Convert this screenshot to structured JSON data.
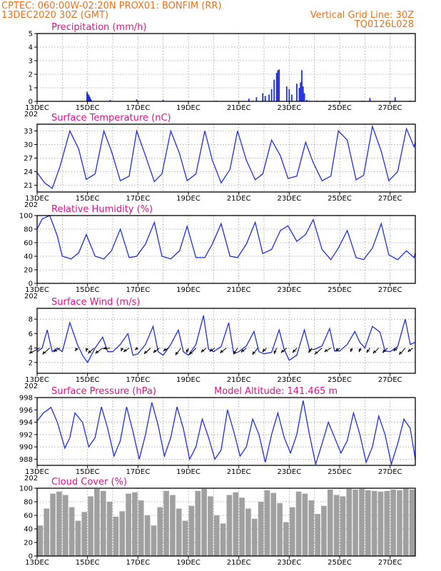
{
  "header": {
    "left_line1": "CPTEC:   060:00W-02:20N   PROX01: BONFIM (RR)",
    "left_line2": "13DEC2020 30Z (GMT)",
    "right_line1": "Vertical Grid Line: 30Z",
    "right_line2": "TQ0126L028"
  },
  "time_axis": {
    "day_start": 13.0,
    "day_end": 28.0,
    "tick_labels": [
      "13DEC",
      "15DEC",
      "17DEC",
      "19DEC",
      "21DEC",
      "23DEC",
      "25DEC",
      "27DEC"
    ],
    "tick_days": [
      13,
      15,
      17,
      19,
      21,
      23,
      25,
      27
    ],
    "year_fragment": "202"
  },
  "chart_data": [
    {
      "type": "bar",
      "title": "Precipitation (mm/h)",
      "ylim": [
        0,
        5
      ],
      "yticks": [
        0,
        1,
        2,
        3,
        4,
        5
      ],
      "color": "#1f2fdf",
      "x": [
        14.98,
        15.02,
        15.06,
        15.1,
        15.14,
        15.9,
        16.95,
        18.0,
        20.1,
        21.4,
        21.55,
        21.7,
        21.95,
        22.05,
        22.2,
        22.3,
        22.4,
        22.5,
        22.55,
        22.6,
        22.9,
        23.0,
        23.1,
        23.3,
        23.4,
        23.45,
        23.5,
        23.55,
        23.6,
        23.7,
        23.8,
        24.1,
        24.4,
        24.8,
        25.9,
        26.2,
        27.2,
        27.8
      ],
      "values": [
        0.7,
        0.55,
        0.45,
        0.3,
        0.15,
        0.1,
        0.15,
        0.1,
        0.05,
        0.2,
        0.05,
        0.3,
        0.6,
        0.4,
        0.5,
        0.9,
        1.6,
        2.1,
        2.3,
        2.35,
        1.1,
        0.9,
        0.5,
        1.3,
        1.0,
        1.4,
        2.3,
        1.1,
        0.6,
        0.1,
        0.05,
        0.05,
        0.05,
        0.05,
        0.05,
        0.25,
        0.3,
        0.05
      ]
    },
    {
      "type": "line",
      "title": "Surface Temperature (nC)",
      "ylim": [
        19.5,
        34.5
      ],
      "yticks": [
        21,
        24,
        27,
        30,
        33
      ],
      "color": "#1f2fdf",
      "x": [
        13.0,
        13.3,
        13.6,
        13.9,
        14.3,
        14.65,
        14.95,
        15.3,
        15.65,
        15.95,
        16.3,
        16.65,
        16.95,
        17.3,
        17.65,
        17.95,
        18.3,
        18.65,
        18.95,
        19.3,
        19.65,
        19.95,
        20.3,
        20.65,
        20.95,
        21.3,
        21.65,
        21.95,
        22.3,
        22.65,
        22.95,
        23.3,
        23.65,
        23.95,
        24.3,
        24.65,
        24.95,
        25.3,
        25.65,
        25.95,
        26.3,
        26.65,
        26.95,
        27.3,
        27.65,
        27.95,
        28.0
      ],
      "values": [
        23.8,
        21.5,
        20.3,
        25.0,
        33.0,
        29.0,
        22.3,
        23.5,
        33.0,
        28.5,
        22.0,
        23.0,
        33.0,
        27.5,
        21.8,
        23.5,
        33.0,
        28.0,
        22.0,
        23.5,
        33.0,
        26.5,
        21.5,
        24.5,
        33.0,
        26.5,
        22.2,
        23.5,
        31.0,
        27.5,
        22.5,
        23.0,
        30.5,
        26.0,
        22.0,
        23.0,
        33.0,
        31.0,
        22.2,
        23.2,
        34.0,
        28.5,
        22.0,
        24.0,
        33.5,
        29.5,
        30.5
      ]
    },
    {
      "type": "line",
      "title": "Relative Humidity (%)",
      "ylim": [
        0,
        100
      ],
      "yticks": [
        0,
        20,
        40,
        60,
        80,
        100
      ],
      "color": "#1f2fdf",
      "x": [
        13.0,
        13.2,
        13.5,
        13.8,
        14.0,
        14.35,
        14.65,
        14.95,
        15.3,
        15.65,
        15.95,
        16.3,
        16.65,
        16.95,
        17.3,
        17.65,
        17.95,
        18.3,
        18.65,
        18.95,
        19.3,
        19.65,
        19.95,
        20.3,
        20.65,
        20.95,
        21.3,
        21.65,
        21.95,
        22.3,
        22.65,
        22.95,
        23.3,
        23.65,
        23.95,
        24.3,
        24.65,
        24.95,
        25.3,
        25.65,
        25.95,
        26.3,
        26.65,
        26.95,
        27.3,
        27.65,
        27.95,
        28.0
      ],
      "values": [
        80,
        95,
        100,
        70,
        40,
        36,
        45,
        72,
        40,
        36,
        48,
        80,
        38,
        40,
        58,
        90,
        40,
        36,
        48,
        84,
        38,
        38,
        58,
        88,
        40,
        38,
        58,
        90,
        44,
        50,
        78,
        85,
        62,
        72,
        94,
        50,
        35,
        52,
        78,
        38,
        35,
        52,
        88,
        42,
        35,
        48,
        38,
        45
      ]
    },
    {
      "type": "line",
      "title": "Surface Wind (m/s)",
      "ylim": [
        0.5,
        9.5
      ],
      "yticks": [
        2,
        4,
        6,
        8
      ],
      "color": "#1f2fdf",
      "x": [
        13.0,
        13.2,
        13.4,
        13.6,
        13.8,
        14.0,
        14.3,
        14.6,
        14.8,
        15.0,
        15.3,
        15.6,
        15.8,
        16.0,
        16.3,
        16.6,
        16.8,
        17.0,
        17.3,
        17.6,
        17.8,
        18.0,
        18.3,
        18.6,
        18.8,
        19.0,
        19.3,
        19.6,
        19.8,
        20.0,
        20.3,
        20.6,
        20.8,
        21.0,
        21.3,
        21.6,
        21.8,
        22.0,
        22.3,
        22.6,
        22.8,
        23.0,
        23.3,
        23.6,
        23.8,
        24.0,
        24.3,
        24.6,
        24.8,
        25.0,
        25.3,
        25.6,
        25.8,
        26.0,
        26.3,
        26.6,
        26.8,
        27.0,
        27.3,
        27.6,
        27.8,
        28.0
      ],
      "values": [
        3.5,
        4.0,
        6.5,
        3.5,
        4.0,
        3.5,
        7.5,
        4.5,
        3.0,
        2.0,
        4.0,
        5.5,
        3.5,
        3.5,
        4.5,
        6.0,
        3.0,
        3.2,
        4.5,
        7.0,
        3.5,
        3.0,
        4.5,
        6.5,
        3.5,
        3.0,
        4.5,
        8.5,
        3.8,
        3.5,
        4.2,
        7.5,
        3.2,
        3.5,
        4.3,
        6.3,
        3.5,
        3.2,
        3.4,
        6.5,
        3.8,
        2.3,
        3.0,
        6.5,
        3.8,
        3.8,
        4.3,
        6.7,
        3.6,
        3.6,
        4.5,
        6.3,
        4.8,
        4.0,
        7.0,
        6.2,
        3.6,
        3.5,
        4.2,
        8.0,
        4.5,
        4.8
      ],
      "vectors": [
        {
          "day": 13.1,
          "u": 2.6,
          "v": 1.4
        },
        {
          "day": 13.5,
          "u": 1.8,
          "v": 1.6
        },
        {
          "day": 13.9,
          "u": 1.5,
          "v": 1.0
        },
        {
          "day": 14.6,
          "u": 0.5,
          "v": 0.8
        },
        {
          "day": 15.0,
          "u": 0.3,
          "v": 0.9
        },
        {
          "day": 15.25,
          "u": 1.4,
          "v": 1.4
        },
        {
          "day": 15.6,
          "u": 1.8,
          "v": 1.4
        },
        {
          "day": 15.9,
          "u": 1.8,
          "v": 0.2
        },
        {
          "day": 16.4,
          "u": 0.4,
          "v": 0.8
        },
        {
          "day": 16.65,
          "u": 1.4,
          "v": 1.0
        },
        {
          "day": 17.0,
          "u": 0.7,
          "v": 0.5
        },
        {
          "day": 17.5,
          "u": 1.6,
          "v": 1.5
        },
        {
          "day": 17.85,
          "u": 1.5,
          "v": 1.2
        },
        {
          "day": 18.2,
          "u": 1.2,
          "v": 0.8
        },
        {
          "day": 18.7,
          "u": 1.3,
          "v": 1.8
        },
        {
          "day": 19.0,
          "u": 0.4,
          "v": 1.2
        },
        {
          "day": 19.3,
          "u": 1.6,
          "v": 1.7
        },
        {
          "day": 19.7,
          "u": 1.2,
          "v": 1.1
        },
        {
          "day": 20.05,
          "u": 1.3,
          "v": 0.9
        },
        {
          "day": 20.5,
          "u": 1.5,
          "v": 1.3
        },
        {
          "day": 20.95,
          "u": 1.0,
          "v": 1.6
        },
        {
          "day": 21.3,
          "u": 1.3,
          "v": 1.1
        },
        {
          "day": 21.75,
          "u": 1.3,
          "v": 1.7
        },
        {
          "day": 22.1,
          "u": 1.0,
          "v": 1.0
        },
        {
          "day": 22.5,
          "u": 0.6,
          "v": 1.5
        },
        {
          "day": 22.9,
          "u": 1.4,
          "v": 1.2
        },
        {
          "day": 23.3,
          "u": 1.0,
          "v": 1.2
        },
        {
          "day": 23.9,
          "u": 0.8,
          "v": 1.2
        },
        {
          "day": 24.3,
          "u": 1.8,
          "v": 1.6
        },
        {
          "day": 24.65,
          "u": 1.6,
          "v": 1.0
        },
        {
          "day": 25.0,
          "u": 1.0,
          "v": 0.8
        },
        {
          "day": 25.5,
          "u": 0.4,
          "v": 1.0
        },
        {
          "day": 25.85,
          "u": 0.5,
          "v": 1.0
        },
        {
          "day": 26.2,
          "u": 0.8,
          "v": 1.2
        },
        {
          "day": 26.55,
          "u": 1.4,
          "v": 1.4
        },
        {
          "day": 26.9,
          "u": 1.2,
          "v": 1.2
        },
        {
          "day": 27.3,
          "u": 1.0,
          "v": 0.8
        },
        {
          "day": 27.6,
          "u": 1.5,
          "v": 1.7
        },
        {
          "day": 27.9,
          "u": 1.2,
          "v": 1.0
        }
      ]
    },
    {
      "type": "line",
      "title": "Surface Pressure (hPa)",
      "extra_label": "Model Altitude: 141.465 m",
      "ylim": [
        987,
        998
      ],
      "yticks": [
        988,
        990,
        992,
        994,
        996,
        998
      ],
      "color": "#1f2fdf",
      "x": [
        13.0,
        13.25,
        13.55,
        13.8,
        14.1,
        14.3,
        14.5,
        14.8,
        15.05,
        15.3,
        15.55,
        15.8,
        16.05,
        16.3,
        16.55,
        16.8,
        17.05,
        17.3,
        17.55,
        17.8,
        18.05,
        18.3,
        18.55,
        18.8,
        19.05,
        19.3,
        19.55,
        19.8,
        20.05,
        20.3,
        20.55,
        20.8,
        21.05,
        21.3,
        21.55,
        21.8,
        22.05,
        22.3,
        22.55,
        22.8,
        23.05,
        23.3,
        23.55,
        23.8,
        24.05,
        24.3,
        24.55,
        24.8,
        25.05,
        25.3,
        25.55,
        25.8,
        26.05,
        26.3,
        26.55,
        26.8,
        27.05,
        27.3,
        27.55,
        27.8,
        28.0
      ],
      "values": [
        994.2,
        995.5,
        996.4,
        994.0,
        989.8,
        991.5,
        995.5,
        994.0,
        990.0,
        991.5,
        996.5,
        993.0,
        988.5,
        991.0,
        996.5,
        992.5,
        988.0,
        992.0,
        997.2,
        993.5,
        988.5,
        991.5,
        996.5,
        993.0,
        988.0,
        990.0,
        994.5,
        991.5,
        988.0,
        989.5,
        996.0,
        992.5,
        988.5,
        990.0,
        994.5,
        992.0,
        987.5,
        992.0,
        995.5,
        991.5,
        989.0,
        992.0,
        997.5,
        992.0,
        987.2,
        990.5,
        994.0,
        991.5,
        989.0,
        991.0,
        995.5,
        992.0,
        987.5,
        990.0,
        995.0,
        992.0,
        987.2,
        990.5,
        994.5,
        993.0,
        988.0
      ]
    },
    {
      "type": "bar",
      "title": "Cloud Cover (%)",
      "ylim": [
        0,
        100
      ],
      "yticks": [
        0,
        20,
        40,
        60,
        80,
        100
      ],
      "color": "#a0a0a0",
      "period_days": 0.25,
      "profile": [
        45,
        70,
        92,
        95,
        90,
        72,
        52,
        65,
        88,
        99,
        96,
        80,
        58,
        66,
        92,
        94,
        82,
        60,
        45,
        72,
        96,
        90,
        70,
        52,
        74,
        96,
        99,
        88,
        60,
        48,
        90,
        94,
        86,
        70,
        55,
        80,
        97,
        93,
        78,
        50,
        72,
        95,
        92,
        82,
        62,
        74,
        98,
        90,
        88,
        99,
        98,
        99,
        97,
        96,
        95,
        96,
        98,
        97,
        99,
        98
      ]
    }
  ]
}
